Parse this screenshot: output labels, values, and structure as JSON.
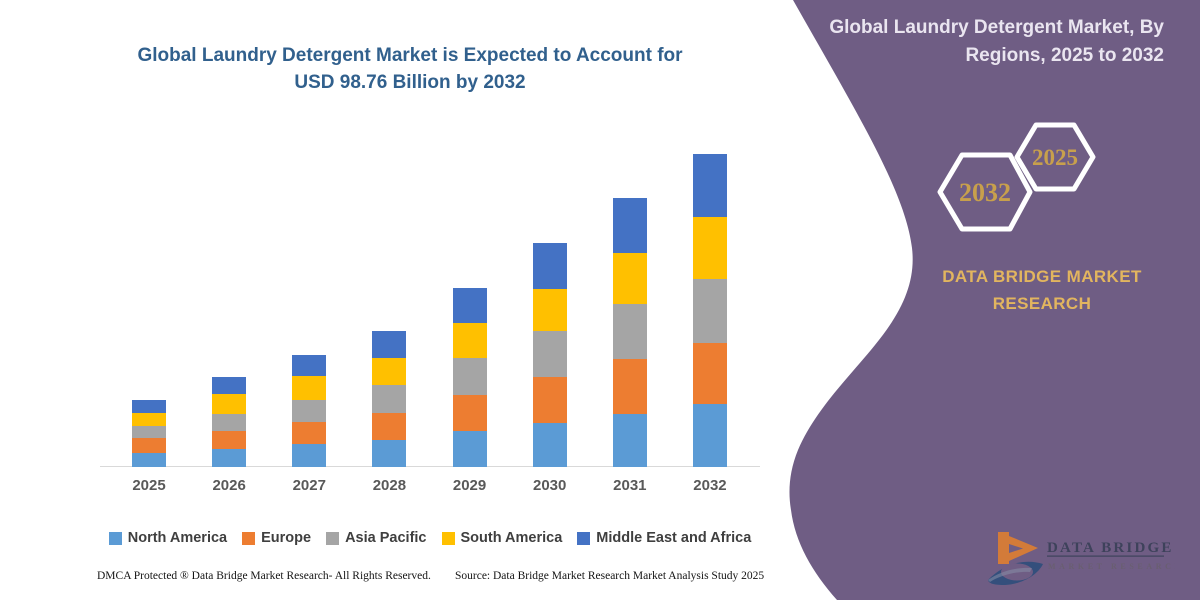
{
  "page": {
    "background": "#ffffff",
    "accent_purple": "#6F5D84"
  },
  "left_panel": {
    "title_lines": [
      "Global Laundry Detergent Market is Expected to Account for",
      "USD 98.76 Billion by 2032"
    ],
    "title_color": "#31608D",
    "footer_left": "DMCA Protected ® Data Bridge Market Research-  All Rights Reserved.",
    "footer_right": "Source: Data Bridge Market Research  Market Analysis Study 2025"
  },
  "right_panel": {
    "title_lines": [
      "Global Laundry Detergent Market, By",
      "Regions, 2025 to 2032"
    ],
    "hexagon_back_year": "2032",
    "hexagon_front_year": "2025",
    "brand_name_lines": [
      "DATA BRIDGE MARKET",
      "RESEARCH"
    ],
    "logo_line1": "DATA BRIDGE",
    "logo_line2": "MARKET RESEARCH",
    "gold": "#E2B55F",
    "hex_year_color": "#C8A04C"
  },
  "chart_data": {
    "type": "bar",
    "stacked": true,
    "title": "Global Laundry Detergent Market is Expected to Account for USD 98.76 Billion by 2032",
    "unit": "USD Billion",
    "categories": [
      "2025",
      "2026",
      "2027",
      "2028",
      "2029",
      "2030",
      "2031",
      "2032"
    ],
    "series": [
      {
        "name": "North America",
        "color": "#5B9BD5",
        "values": [
          4.4,
          5.8,
          7.3,
          8.6,
          11.5,
          13.9,
          16.8,
          20.0
        ]
      },
      {
        "name": "Europe",
        "color": "#ED7D31",
        "values": [
          4.8,
          5.7,
          7.0,
          8.4,
          11.2,
          14.5,
          17.3,
          19.2
        ]
      },
      {
        "name": "Asia Pacific",
        "color": "#A5A5A5",
        "values": [
          3.8,
          5.3,
          6.9,
          8.9,
          11.6,
          14.4,
          17.3,
          20.0
        ]
      },
      {
        "name": "South America",
        "color": "#FFC000",
        "values": [
          4.0,
          6.2,
          7.6,
          8.4,
          11.0,
          13.4,
          16.1,
          19.7
        ]
      },
      {
        "name": "Middle East and Africa",
        "color": "#4472C4",
        "values": [
          4.2,
          5.4,
          6.6,
          8.5,
          11.1,
          14.4,
          17.3,
          19.86
        ]
      }
    ],
    "totals": [
      21.2,
      28.4,
      35.4,
      42.8,
      56.4,
      70.6,
      84.8,
      98.76
    ],
    "ylim": [
      0,
      100
    ],
    "gridlines": false,
    "y_axis_visible": false,
    "legend_position": "bottom"
  }
}
